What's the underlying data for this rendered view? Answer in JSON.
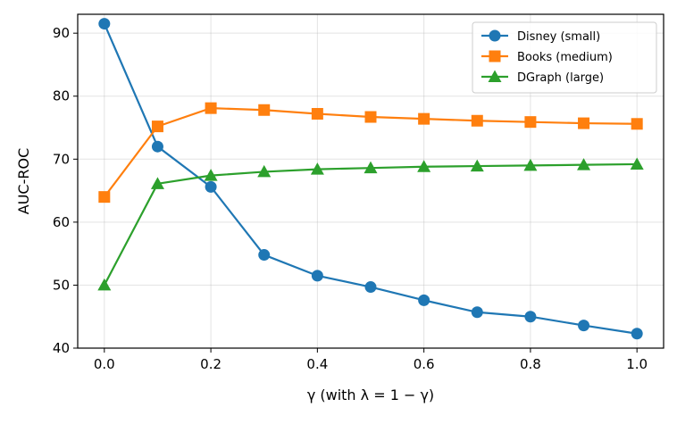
{
  "chart_data": {
    "type": "line",
    "title": "",
    "xlabel": "γ (with λ = 1 − γ)",
    "ylabel": "AUC-ROC",
    "x": [
      0.0,
      0.1,
      0.2,
      0.3,
      0.4,
      0.5,
      0.6,
      0.7,
      0.8,
      0.9,
      1.0
    ],
    "xlim": [
      -0.05,
      1.05
    ],
    "ylim": [
      40,
      93
    ],
    "xticks": [
      0.0,
      0.2,
      0.4,
      0.6,
      0.8,
      1.0
    ],
    "xtick_labels": [
      "0.0",
      "0.2",
      "0.4",
      "0.6",
      "0.8",
      "1.0"
    ],
    "yticks": [
      40,
      50,
      60,
      70,
      80,
      90
    ],
    "ytick_labels": [
      "40",
      "50",
      "60",
      "70",
      "80",
      "90"
    ],
    "grid": true,
    "legend_position": "top-right",
    "series": [
      {
        "name": "Disney (small)",
        "color": "#1f77b4",
        "marker": "circle",
        "values": [
          91.5,
          72.0,
          65.6,
          54.8,
          51.5,
          49.7,
          47.6,
          45.7,
          45.0,
          43.6,
          42.3
        ]
      },
      {
        "name": "Books (medium)",
        "color": "#ff7f0e",
        "marker": "square",
        "values": [
          64.0,
          75.2,
          78.1,
          77.8,
          77.2,
          76.7,
          76.4,
          76.1,
          75.9,
          75.7,
          75.6
        ]
      },
      {
        "name": "DGraph (large)",
        "color": "#2ca02c",
        "marker": "triangle",
        "values": [
          50.0,
          66.1,
          67.4,
          68.0,
          68.4,
          68.6,
          68.8,
          68.9,
          69.0,
          69.1,
          69.2
        ]
      }
    ]
  }
}
